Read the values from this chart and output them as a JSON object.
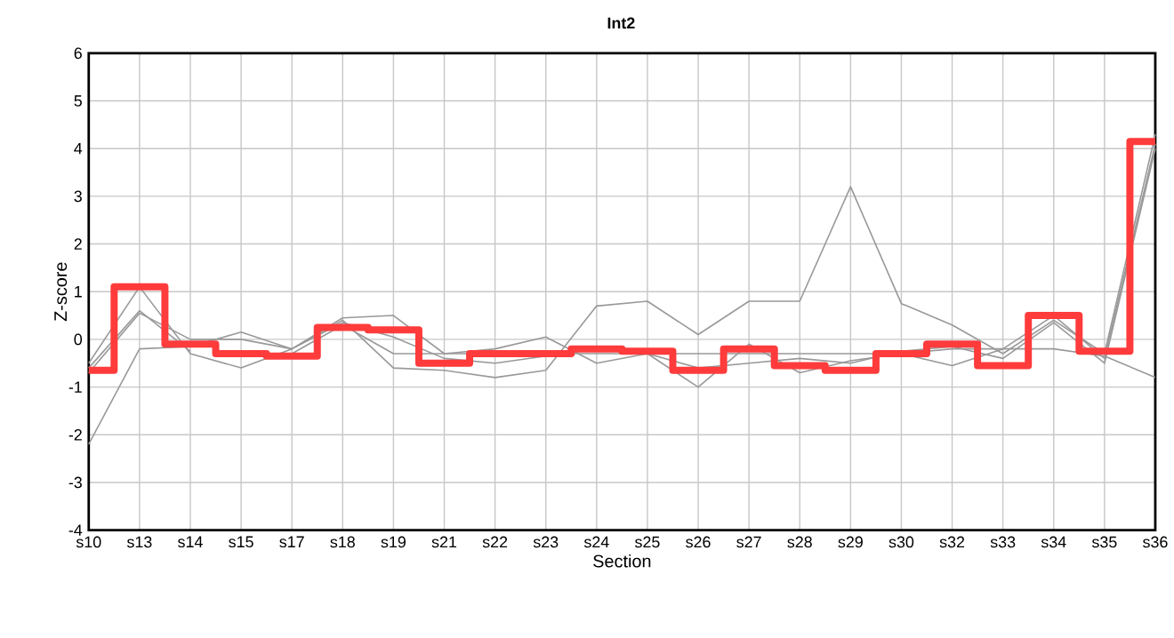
{
  "chart_data": {
    "type": "line",
    "title": "Int2",
    "xlabel": "Section",
    "ylabel": "Z-score",
    "categories": [
      "s10",
      "s13",
      "s14",
      "s15",
      "s17",
      "s18",
      "s19",
      "s21",
      "s22",
      "s23",
      "s24",
      "s25",
      "s26",
      "s27",
      "s28",
      "s29",
      "s30",
      "s32",
      "s33",
      "s34",
      "s35",
      "s36"
    ],
    "ylim": [
      -4,
      6
    ],
    "yticks": [
      -4,
      -3,
      -2,
      -1,
      0,
      1,
      2,
      3,
      4,
      5,
      6
    ],
    "grid": true,
    "marker": "none",
    "line_style": "solid",
    "series": [
      {
        "color": "#999999",
        "values": [
          -2.2,
          -0.2,
          -0.15,
          0.15,
          -0.2,
          0.4,
          -0.6,
          -0.65,
          -0.8,
          -0.65,
          0.7,
          0.8,
          0.1,
          0.8,
          0.8,
          3.2,
          0.75,
          0.3,
          -0.3,
          0.4,
          -0.3,
          4.3
        ]
      },
      {
        "color": "#999999",
        "values": [
          -0.5,
          1.1,
          -0.3,
          -0.6,
          -0.2,
          0.45,
          0.5,
          -0.3,
          -0.2,
          0.05,
          -0.5,
          -0.3,
          -1.0,
          -0.1,
          -0.7,
          -0.45,
          -0.3,
          -0.55,
          -0.2,
          0.5,
          -0.4,
          4.1
        ]
      },
      {
        "color": "#999999",
        "values": [
          -0.7,
          0.55,
          0.0,
          0.0,
          -0.2,
          0.35,
          0.05,
          -0.4,
          -0.5,
          -0.35,
          -0.2,
          -0.3,
          -0.6,
          -0.5,
          -0.4,
          -0.5,
          -0.25,
          -0.15,
          -0.4,
          0.35,
          -0.5,
          4.0
        ]
      },
      {
        "color": "#999999",
        "values": [
          -0.6,
          0.6,
          -0.25,
          null,
          -0.3,
          0.3,
          -0.3,
          -0.3,
          -0.3,
          -0.3,
          -0.3,
          -0.3,
          -0.3,
          -0.3,
          -0.3,
          -0.3,
          -0.3,
          -0.2,
          -0.2,
          -0.2,
          -0.35,
          -0.8
        ]
      },
      {
        "type": "step",
        "color": "#ff3b3b",
        "values": [
          -0.65,
          1.1,
          -0.1,
          -0.3,
          -0.35,
          0.25,
          0.2,
          -0.5,
          -0.3,
          -0.3,
          -0.2,
          -0.25,
          -0.65,
          -0.2,
          -0.55,
          -0.65,
          -0.3,
          -0.1,
          -0.55,
          0.5,
          -0.25,
          4.15
        ]
      }
    ]
  }
}
